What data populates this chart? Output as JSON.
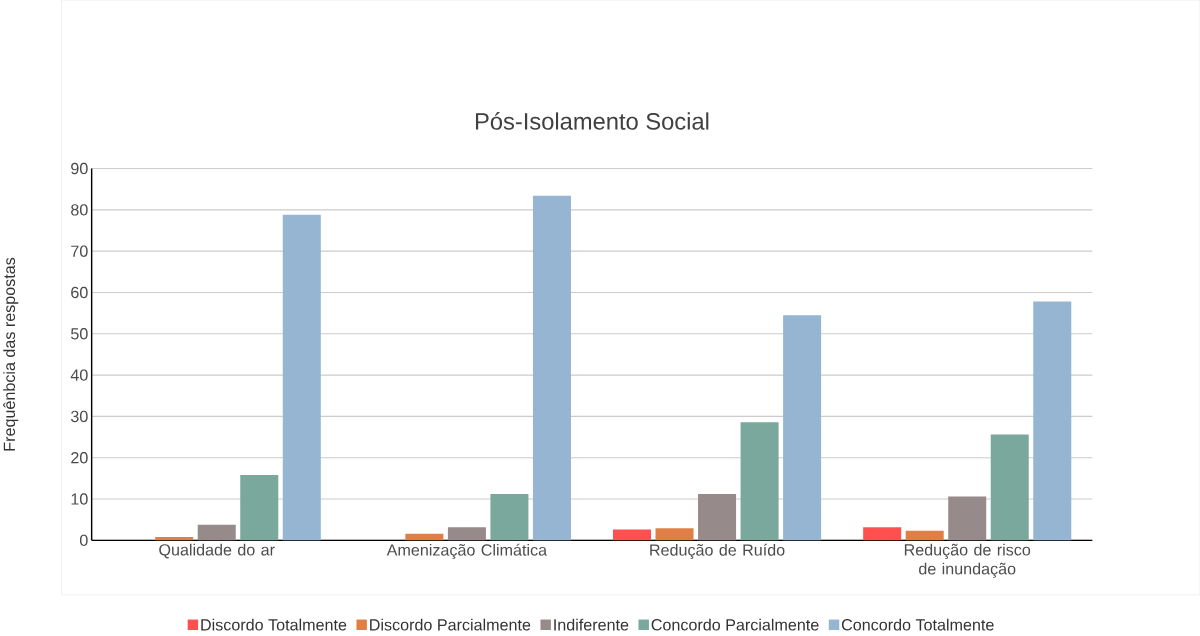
{
  "chart_data": {
    "type": "bar",
    "title": "Pós-Isolamento Social",
    "ylabel": "Frequênbcia das respostas",
    "categories": [
      "Qualidade do ar",
      "Amenização Climática",
      "Redução de Ruído",
      "Redução de risco de inundação"
    ],
    "series": [
      {
        "name": "Discordo Totalmente",
        "color": "#ff5050",
        "values": [
          0,
          0,
          2.6,
          3.2
        ]
      },
      {
        "name": "Discordo Parcialmente",
        "color": "#e07f45",
        "values": [
          0.8,
          1.6,
          2.9,
          2.3
        ]
      },
      {
        "name": "Indiferente",
        "color": "#968b8a",
        "values": [
          3.8,
          3.2,
          11.2,
          10.6
        ]
      },
      {
        "name": "Concordo Parcialmente",
        "color": "#7ba89c",
        "values": [
          15.8,
          11.2,
          28.6,
          25.6
        ]
      },
      {
        "name": "Concordo Totalmente",
        "color": "#95b5d3",
        "values": [
          78.8,
          83.4,
          54.5,
          57.8
        ]
      }
    ],
    "ylim": [
      0,
      90
    ],
    "yticks": [
      0,
      10,
      20,
      30,
      40,
      50,
      60,
      70,
      80,
      90
    ],
    "grid": "y",
    "legend": "bottom"
  }
}
